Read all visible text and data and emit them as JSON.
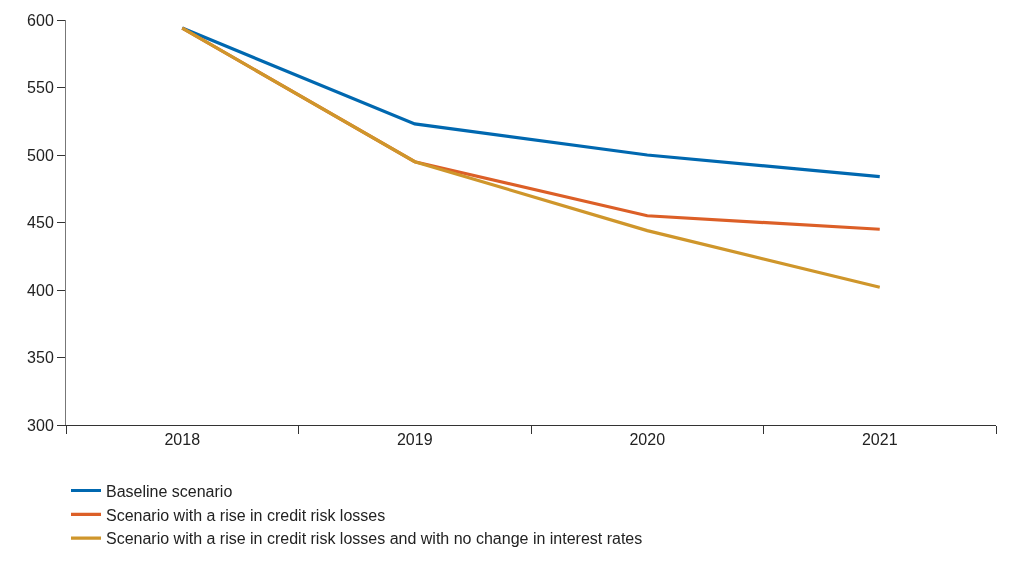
{
  "chart_data": {
    "type": "line",
    "categories": [
      "2018",
      "2019",
      "2020",
      "2021"
    ],
    "series": [
      {
        "name": "Baseline scenario",
        "color": "#0068b0",
        "values": [
          594,
          523,
          500,
          484
        ]
      },
      {
        "name": "Scenario with a rise in credit risk losses",
        "color": "#dc5f27",
        "values": [
          594,
          495,
          455,
          445
        ]
      },
      {
        "name": "Scenario with a rise in credit risk losses and with no change in interest rates",
        "color": "#cf962b",
        "values": [
          594,
          495,
          444,
          402
        ]
      }
    ],
    "ylim": [
      300,
      600
    ],
    "yticks": [
      300,
      350,
      400,
      450,
      500,
      550,
      600
    ],
    "grid": false,
    "legend": "bottom",
    "marker": "none",
    "line_style": "solid"
  }
}
